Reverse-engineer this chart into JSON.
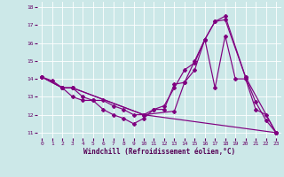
{
  "xlabel": "Windchill (Refroidissement éolien,°C)",
  "background_color": "#cce8e8",
  "line_color": "#800080",
  "xlim": [
    -0.5,
    23.5
  ],
  "ylim": [
    10.7,
    18.3
  ],
  "yticks": [
    11,
    12,
    13,
    14,
    15,
    16,
    17,
    18
  ],
  "xticks": [
    0,
    1,
    2,
    3,
    4,
    5,
    6,
    7,
    8,
    9,
    10,
    11,
    12,
    13,
    14,
    15,
    16,
    17,
    18,
    19,
    20,
    21,
    22,
    23
  ],
  "line1_x": [
    0,
    1,
    2,
    3,
    4,
    5,
    6,
    7,
    8,
    9,
    10,
    11,
    12,
    13,
    14,
    15,
    16,
    17,
    18,
    20,
    21,
    22,
    23
  ],
  "line1_y": [
    14.1,
    13.9,
    13.5,
    13.0,
    12.8,
    12.8,
    12.3,
    12.0,
    11.8,
    11.5,
    11.8,
    12.3,
    12.5,
    13.5,
    14.5,
    14.9,
    16.2,
    17.2,
    17.3,
    14.1,
    12.7,
    11.7,
    11.0
  ],
  "line2_x": [
    0,
    2,
    3,
    4,
    5,
    6,
    7,
    8,
    9,
    10,
    11,
    12,
    13,
    14,
    15,
    16,
    17,
    18,
    20,
    23
  ],
  "line2_y": [
    14.1,
    13.5,
    13.5,
    13.0,
    12.8,
    12.8,
    12.5,
    12.3,
    12.0,
    12.0,
    12.3,
    12.3,
    13.7,
    13.8,
    15.0,
    16.2,
    17.2,
    17.5,
    14.1,
    11.0
  ],
  "line3_x": [
    0,
    2,
    3,
    10,
    13,
    14,
    15,
    16,
    17,
    18,
    19,
    20,
    21,
    22,
    23
  ],
  "line3_y": [
    14.1,
    13.5,
    13.5,
    12.0,
    12.2,
    13.8,
    14.5,
    16.2,
    13.5,
    16.4,
    14.0,
    14.0,
    12.3,
    12.0,
    11.0
  ],
  "line4_x": [
    0,
    2,
    3,
    10,
    23
  ],
  "line4_y": [
    14.1,
    13.5,
    13.5,
    12.0,
    11.0
  ]
}
